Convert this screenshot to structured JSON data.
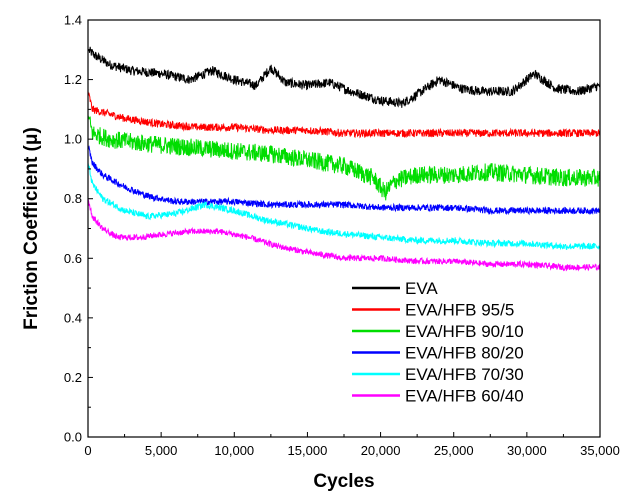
{
  "chart_data": {
    "type": "line",
    "title": "",
    "xlabel": "Cycles",
    "ylabel": "Friction Coefficient (μ)",
    "xlim": [
      0,
      35000
    ],
    "ylim": [
      0.0,
      1.4
    ],
    "x_ticks": [
      0,
      5000,
      10000,
      15000,
      20000,
      25000,
      30000,
      35000
    ],
    "x_tick_labels": [
      "0",
      "5,000",
      "10,000",
      "15,000",
      "20,000",
      "25,000",
      "30,000",
      "35,000"
    ],
    "y_ticks": [
      0.0,
      0.2,
      0.4,
      0.6,
      0.8,
      1.0,
      1.2,
      1.4
    ],
    "y_tick_labels": [
      "0.0",
      "0.2",
      "0.4",
      "0.6",
      "0.8",
      "1.0",
      "1.2",
      "1.4"
    ],
    "grid": false,
    "legend_position": "bottom-right",
    "series": [
      {
        "name": "EVA",
        "color": "#000000",
        "x": [
          0,
          500,
          1500,
          3000,
          5000,
          7000,
          8500,
          10000,
          11500,
          12500,
          13500,
          15000,
          16500,
          18000,
          20000,
          21500,
          22500,
          24000,
          25500,
          27000,
          29000,
          30500,
          32000,
          33500,
          35000
        ],
        "y": [
          1.3,
          1.28,
          1.25,
          1.23,
          1.22,
          1.2,
          1.23,
          1.2,
          1.18,
          1.24,
          1.19,
          1.18,
          1.19,
          1.16,
          1.13,
          1.12,
          1.15,
          1.2,
          1.17,
          1.16,
          1.16,
          1.22,
          1.17,
          1.16,
          1.18
        ],
        "noise": 0.016
      },
      {
        "name": "EVA/HFB 95/5",
        "color": "#ff0000",
        "x": [
          0,
          300,
          1000,
          2500,
          5000,
          7500,
          10000,
          12500,
          15000,
          17500,
          20000,
          22500,
          25000,
          27500,
          30000,
          32500,
          35000
        ],
        "y": [
          1.16,
          1.1,
          1.09,
          1.07,
          1.05,
          1.04,
          1.04,
          1.03,
          1.03,
          1.02,
          1.02,
          1.02,
          1.02,
          1.02,
          1.02,
          1.02,
          1.02
        ],
        "noise": 0.013
      },
      {
        "name": "EVA/HFB 90/10",
        "color": "#00dd00",
        "x": [
          0,
          300,
          1500,
          3000,
          5000,
          7500,
          10000,
          12500,
          15000,
          17500,
          19500,
          20300,
          21000,
          22500,
          25000,
          27500,
          30000,
          32500,
          35000
        ],
        "y": [
          1.08,
          1.02,
          1.0,
          0.99,
          0.98,
          0.97,
          0.96,
          0.95,
          0.93,
          0.91,
          0.87,
          0.82,
          0.86,
          0.88,
          0.88,
          0.89,
          0.88,
          0.87,
          0.87
        ],
        "noise": 0.03
      },
      {
        "name": "EVA/HFB 80/20",
        "color": "#0000ff",
        "x": [
          0,
          300,
          1000,
          2500,
          4000,
          6000,
          8000,
          10000,
          12500,
          15000,
          17500,
          20000,
          22500,
          25000,
          27500,
          30000,
          32500,
          35000
        ],
        "y": [
          0.98,
          0.92,
          0.88,
          0.84,
          0.81,
          0.79,
          0.79,
          0.79,
          0.78,
          0.78,
          0.78,
          0.77,
          0.77,
          0.77,
          0.76,
          0.76,
          0.76,
          0.76
        ],
        "noise": 0.011
      },
      {
        "name": "EVA/HFB 70/30",
        "color": "#00ffff",
        "x": [
          0,
          300,
          1000,
          2500,
          4000,
          6000,
          8000,
          10000,
          12000,
          14000,
          16000,
          18000,
          20000,
          22500,
          25000,
          27500,
          30000,
          32500,
          35000
        ],
        "y": [
          0.92,
          0.85,
          0.8,
          0.76,
          0.74,
          0.75,
          0.78,
          0.76,
          0.73,
          0.71,
          0.69,
          0.68,
          0.67,
          0.66,
          0.66,
          0.65,
          0.65,
          0.64,
          0.64
        ],
        "noise": 0.011
      },
      {
        "name": "EVA/HFB 60/40",
        "color": "#ff00ff",
        "x": [
          0,
          300,
          1000,
          2000,
          3500,
          5000,
          7000,
          9000,
          11000,
          13000,
          15000,
          17500,
          20000,
          22500,
          25000,
          27500,
          30000,
          32500,
          35000
        ],
        "y": [
          0.8,
          0.74,
          0.7,
          0.67,
          0.67,
          0.68,
          0.69,
          0.69,
          0.67,
          0.64,
          0.62,
          0.6,
          0.6,
          0.59,
          0.59,
          0.58,
          0.58,
          0.57,
          0.57
        ],
        "noise": 0.01
      }
    ]
  }
}
